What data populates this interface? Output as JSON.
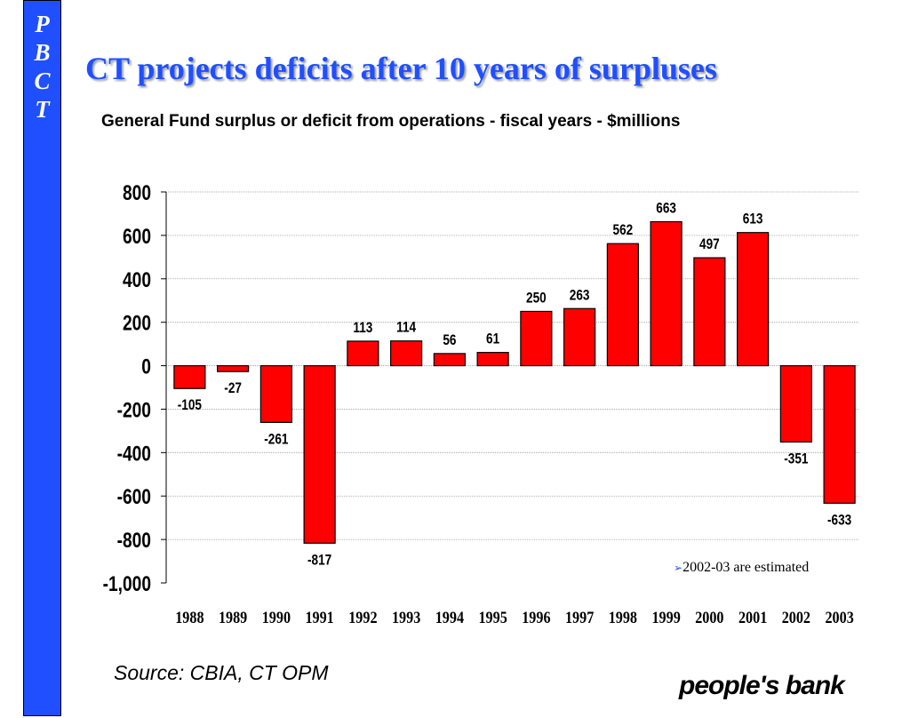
{
  "sidebar": {
    "letters": [
      "P",
      "B",
      "C",
      "T"
    ],
    "color": "#1f4fff"
  },
  "title": "CT projects deficits after 10 years of surpluses",
  "source": "Source: CBIA, CT OPM",
  "logo": "people's bank",
  "chart_data": {
    "type": "bar",
    "subtitle": "General Fund surplus or deficit from operations - fiscal years - $millions",
    "categories": [
      "1988",
      "1989",
      "1990",
      "1991",
      "1992",
      "1993",
      "1994",
      "1995",
      "1996",
      "1997",
      "1998",
      "1999",
      "2000",
      "2001",
      "2002",
      "2003"
    ],
    "values": [
      -105,
      -27,
      -261,
      -817,
      113,
      114,
      56,
      61,
      250,
      263,
      562,
      663,
      497,
      613,
      -351,
      -633
    ],
    "labels": [
      "-105",
      "-27",
      "-261",
      "-817",
      "113",
      "114",
      "56",
      "61",
      "250",
      "263",
      "562",
      "663",
      "497",
      "613",
      "-351",
      "-633"
    ],
    "ylim": [
      -1000,
      800
    ],
    "yticks": [
      800,
      600,
      400,
      200,
      0,
      -200,
      -400,
      -600,
      -800,
      -1000
    ],
    "ytick_labels": [
      "800",
      "600",
      "400",
      "200",
      "0",
      "-200",
      "-400",
      "-600",
      "-800",
      "-1,000"
    ],
    "grid": true,
    "bar_color": "#ff0000",
    "note": "2002-03 are estimated",
    "note_bullet": "➢"
  }
}
